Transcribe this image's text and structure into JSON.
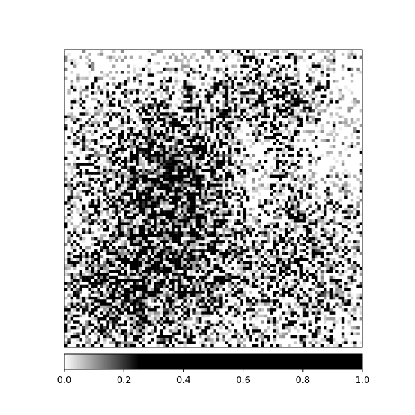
{
  "chart_data": {
    "type": "heatmap",
    "title": "",
    "xlabel": "",
    "ylabel": "",
    "axes_ticks_visible": false,
    "grid": false,
    "colormap": {
      "name": "gray_r",
      "low_color": "#ffffff",
      "high_color": "#000000",
      "saturates_at": 0.25
    },
    "colorbar": {
      "orientation": "horizontal",
      "placement": "bottom",
      "range": [
        0.0,
        1.0
      ],
      "ticks": [
        0.0,
        0.2,
        0.4,
        0.6,
        0.8,
        1.0
      ],
      "tick_labels": [
        "0.0",
        "0.2",
        "0.4",
        "0.6",
        "0.8",
        "1.0"
      ]
    },
    "image_description_grid": {
      "rows": 100,
      "cols": 100,
      "value_range": [
        0.0,
        1.0
      ],
      "note_values": "dense dark speckle concentrated in the center-left and bottom-left regions; sparse near top and right edges"
    }
  }
}
